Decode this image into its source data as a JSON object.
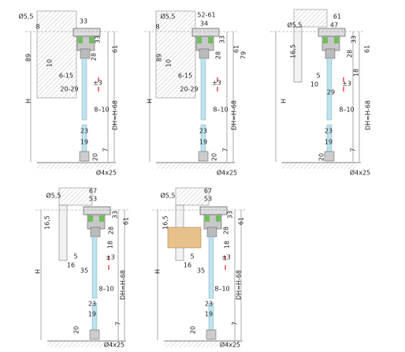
{
  "drawings": [
    {
      "labels": [
        "Ø5,5",
        "8",
        "33",
        "33",
        "28",
        "61",
        "89",
        "10",
        "6-15",
        "±3",
        "20-29",
        "H",
        "8–10",
        "DH=H-68",
        "23",
        "19",
        "7",
        "20",
        "Ø4x25"
      ]
    },
    {
      "labels": [
        "Ø5,5",
        "8",
        "52-61",
        "34",
        "33",
        "28",
        "61",
        "79",
        "89",
        "10",
        "6-15",
        "±3",
        "20-29",
        "H",
        "8–10",
        "DH=H-68",
        "23",
        "19",
        "7",
        "20",
        "Ø4x25"
      ]
    },
    {
      "labels": [
        "Ø5,5",
        "61",
        "47",
        "33",
        "28",
        "61",
        "16,5",
        "5",
        "10",
        "18",
        "±3",
        "29",
        "H",
        "8–10",
        "DH=H-68",
        "23",
        "19",
        "7",
        "20",
        "Ø4x25"
      ]
    },
    {
      "labels": [
        "Ø5,5",
        "67",
        "53",
        "33",
        "28",
        "61",
        "16,5",
        "18",
        "5",
        "16",
        "35",
        "±3",
        "H",
        "8–10",
        "DH=H-68",
        "23",
        "19",
        "7",
        "20",
        "Ø4x25"
      ]
    },
    {
      "labels": [
        "Ø5,5",
        "67",
        "53",
        "33",
        "28",
        "61",
        "16,5",
        "18",
        "5",
        "16",
        "35",
        "±3",
        "H",
        "8–10",
        "DH=H-68",
        "23",
        "19",
        "7",
        "20",
        "Ø4x25"
      ]
    }
  ]
}
